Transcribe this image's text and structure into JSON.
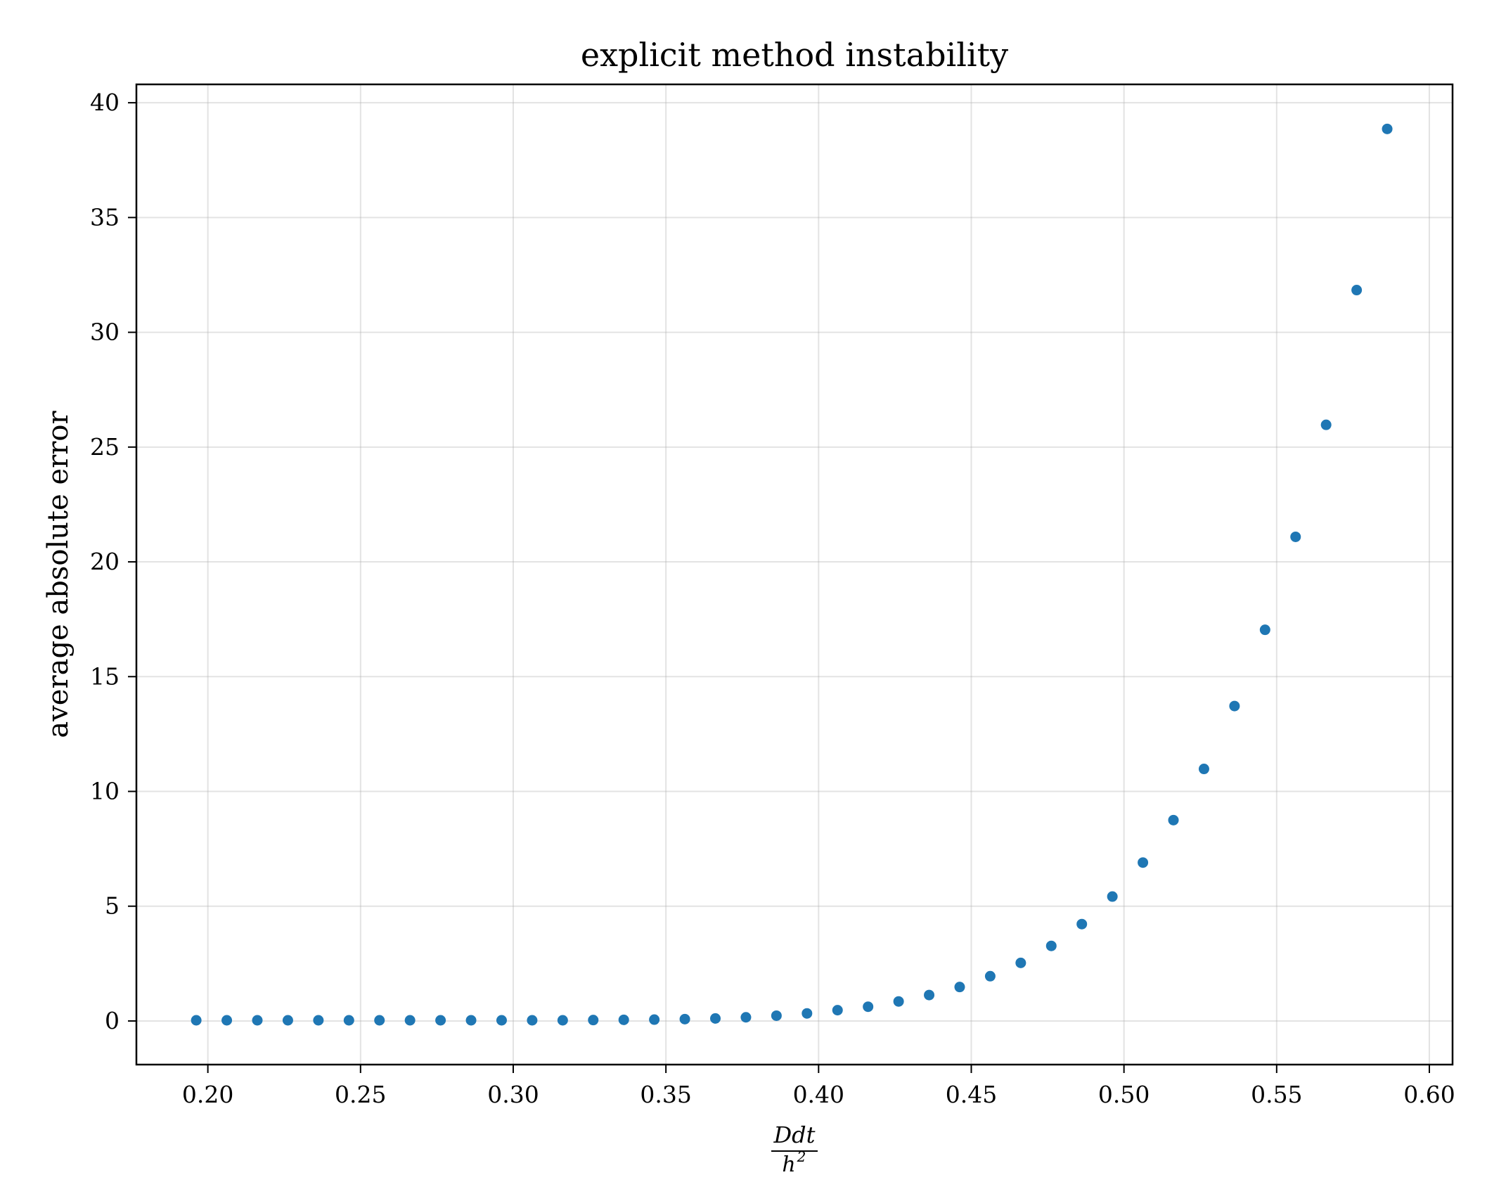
{
  "chart_data": {
    "type": "scatter",
    "title": "explicit method instability",
    "xlabel": {
      "numerator": "Ddt",
      "denominator_base": "h",
      "denominator_exp": "2"
    },
    "ylabel": "average absolute error",
    "xlim": [
      0.1766,
      0.6076
    ],
    "ylim": [
      -1.9,
      40.8
    ],
    "xticks": [
      0.2,
      0.25,
      0.3,
      0.35,
      0.4,
      0.45,
      0.5,
      0.55,
      0.6
    ],
    "xtick_labels": [
      "0.20",
      "0.25",
      "0.30",
      "0.35",
      "0.40",
      "0.45",
      "0.50",
      "0.55",
      "0.60"
    ],
    "yticks": [
      0,
      5,
      10,
      15,
      20,
      25,
      30,
      35,
      40
    ],
    "ytick_labels": [
      "0",
      "5",
      "10",
      "15",
      "20",
      "25",
      "30",
      "35",
      "40"
    ],
    "grid": true,
    "marker_color": "#1f77b4",
    "series": [
      {
        "x": [
          0.1962,
          0.2062,
          0.2162,
          0.2262,
          0.2362,
          0.2462,
          0.2562,
          0.2662,
          0.2762,
          0.2862,
          0.2962,
          0.3062,
          0.3162,
          0.3262,
          0.3362,
          0.3462,
          0.3562,
          0.3662,
          0.3762,
          0.3862,
          0.3962,
          0.4062,
          0.4162,
          0.4262,
          0.4362,
          0.4462,
          0.4562,
          0.4662,
          0.4762,
          0.4862,
          0.4962,
          0.5062,
          0.5162,
          0.5262,
          0.5362,
          0.5462,
          0.5562,
          0.5662,
          0.5762,
          0.5862
        ],
        "y": [
          0.03,
          0.03,
          0.03,
          0.03,
          0.03,
          0.03,
          0.03,
          0.03,
          0.03,
          0.03,
          0.03,
          0.03,
          0.03,
          0.04,
          0.05,
          0.06,
          0.08,
          0.11,
          0.16,
          0.23,
          0.33,
          0.47,
          0.62,
          0.85,
          1.13,
          1.48,
          1.95,
          2.53,
          3.27,
          4.22,
          5.42,
          6.9,
          8.75,
          10.98,
          13.72,
          17.04,
          21.09,
          25.97,
          31.84,
          38.86
        ]
      }
    ]
  }
}
